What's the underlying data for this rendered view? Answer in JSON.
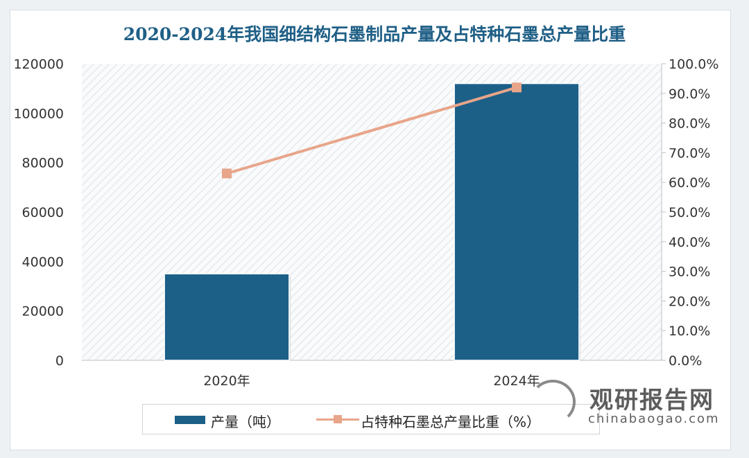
{
  "watermark": {
    "cn": "观研报告网",
    "url": "chinabaogao.com"
  },
  "colors": {
    "bar": "#1c6088",
    "line": "#e8a58a",
    "title": "#1f5f86"
  },
  "chart_data": {
    "type": "bar",
    "title": "2020-2024年我国细结构石墨制品产量及占特种石墨总产量比重",
    "categories": [
      "2020年",
      "2024年"
    ],
    "series": [
      {
        "name": "产量（吨）",
        "type": "bar",
        "axis": "left",
        "values": [
          35000,
          112000
        ]
      },
      {
        "name": "占特种石墨总产量比重（%）",
        "type": "line",
        "axis": "right",
        "values": [
          63.0,
          92.0
        ]
      }
    ],
    "y_left": {
      "min": 0,
      "max": 120000,
      "ticks": [
        "0",
        "20000",
        "40000",
        "60000",
        "80000",
        "100000",
        "120000"
      ]
    },
    "y_right": {
      "min": 0,
      "max": 100,
      "ticks": [
        "0.0%",
        "10.0%",
        "20.0%",
        "30.0%",
        "40.0%",
        "50.0%",
        "60.0%",
        "70.0%",
        "80.0%",
        "90.0%",
        "100.0%"
      ]
    },
    "legend": "bottom",
    "grid": false
  }
}
